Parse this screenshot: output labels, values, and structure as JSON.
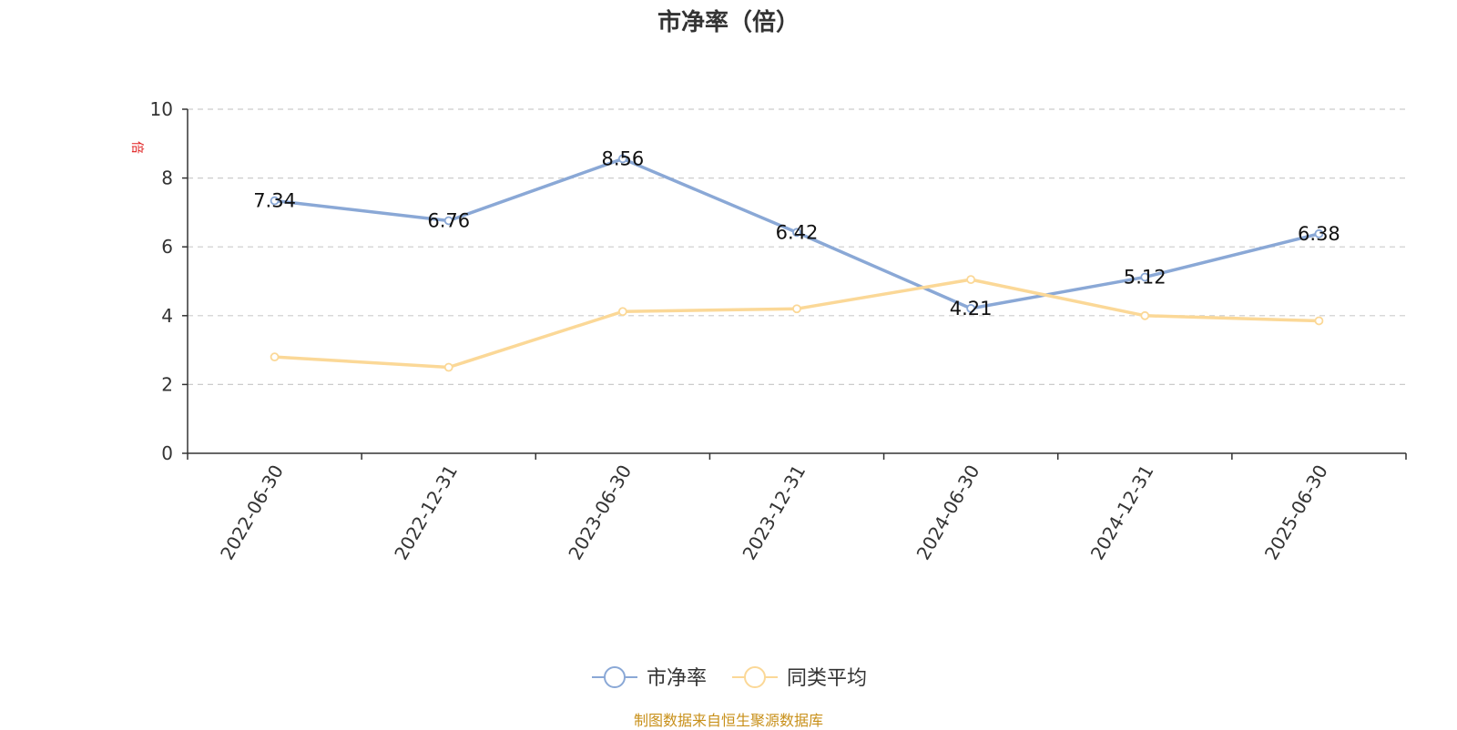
{
  "colors": {
    "series_1": "#8aa8d6",
    "series_2": "#fbd897",
    "grid": "#cccccc",
    "axis": "#333333",
    "unit": "#e02020",
    "source": "#c8901a"
  },
  "source_note": "制图数据来自恒生聚源数据库",
  "chart_data": {
    "type": "line",
    "title": "市净率（倍）",
    "ylabel": "倍",
    "xlabel": "",
    "categories": [
      "2022-06-30",
      "2022-12-31",
      "2023-06-30",
      "2023-12-31",
      "2024-06-30",
      "2024-12-31",
      "2025-06-30"
    ],
    "ylim": [
      0,
      10
    ],
    "yticks": [
      0,
      2,
      4,
      6,
      8,
      10
    ],
    "grid": true,
    "legend_position": "bottom-center",
    "series": [
      {
        "name": "市净率",
        "values": [
          7.34,
          6.76,
          8.56,
          6.42,
          4.21,
          5.12,
          6.38
        ],
        "labels": [
          "7.34",
          "6.76",
          "8.56",
          "6.42",
          "4.21",
          "5.12",
          "6.38"
        ]
      },
      {
        "name": "同类平均",
        "values": [
          2.8,
          2.5,
          4.12,
          4.2,
          5.05,
          4.0,
          3.85
        ]
      }
    ]
  }
}
